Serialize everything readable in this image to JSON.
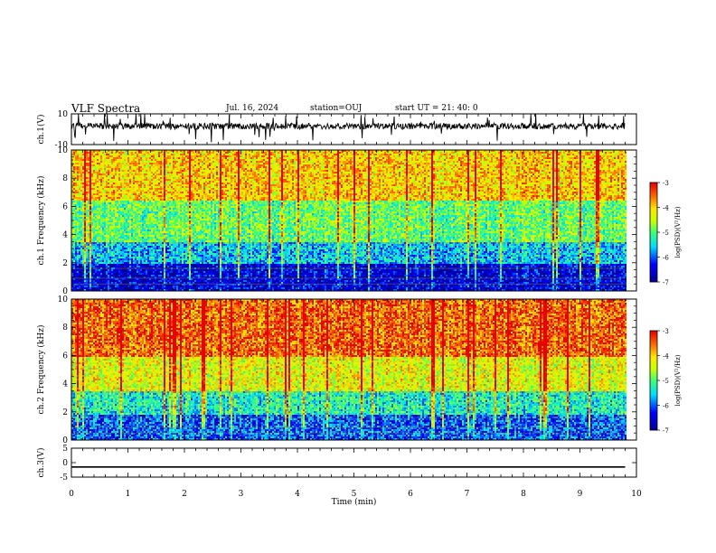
{
  "header": {
    "title": "VLF Spectra",
    "date": "Jul. 16, 2024",
    "station": "station=OUJ",
    "start": "start UT = 21: 40: 0"
  },
  "chart_data": [
    {
      "type": "line",
      "title": "",
      "ylabel": "ch.1(V)",
      "ylim": [
        -10,
        10
      ],
      "y_ticks": [
        "10",
        "-10"
      ],
      "xlabel": "",
      "xlim": [
        0,
        10
      ],
      "baseline": 0,
      "series": [
        {
          "values": "noisy waveform around 0 V with spikes",
          "color": "#000000"
        }
      ]
    },
    {
      "type": "heatmap",
      "title": "",
      "ylabel": "ch.1 Frequency (kHz)",
      "ylim": [
        0,
        10
      ],
      "y_ticks": [
        "0",
        "2",
        "4",
        "6",
        "8",
        "10"
      ],
      "xlim": [
        0,
        9.8
      ],
      "colorbar": {
        "label": "log(PSD)(V²/Hz)",
        "range": [
          -7,
          -3
        ],
        "ticks": [
          "-3",
          "-4",
          "-5",
          "-6",
          "-7"
        ]
      },
      "bands": [
        {
          "f_range": [
            0,
            2
          ],
          "log_psd": -6.5
        },
        {
          "f_range": [
            2,
            3.5
          ],
          "log_psd": -5.6
        },
        {
          "f_range": [
            3.5,
            6.5
          ],
          "log_psd": -4.9
        },
        {
          "f_range": [
            6.5,
            10
          ],
          "log_psd": -4.0
        }
      ]
    },
    {
      "type": "heatmap",
      "title": "",
      "ylabel": "ch.2 Frequency (kHz)",
      "ylim": [
        0,
        10
      ],
      "y_ticks": [
        "0",
        "2",
        "4",
        "6",
        "8",
        "10"
      ],
      "xlim": [
        0,
        9.8
      ],
      "colorbar": {
        "label": "log(PSD)(V²/Hz)",
        "range": [
          -7,
          -3
        ],
        "ticks": [
          "-3",
          "-4",
          "-5",
          "-6",
          "-7"
        ]
      },
      "bands": [
        {
          "f_range": [
            0,
            1.8
          ],
          "log_psd": -6.0
        },
        {
          "f_range": [
            1.8,
            3.5
          ],
          "log_psd": -5.3
        },
        {
          "f_range": [
            3.5,
            6.0
          ],
          "log_psd": -4.3
        },
        {
          "f_range": [
            6.0,
            10
          ],
          "log_psd": -3.5
        }
      ]
    },
    {
      "type": "line",
      "title": "",
      "ylabel": "ch.3(V)",
      "ylim": [
        -5,
        5
      ],
      "y_ticks": [
        "5",
        "0",
        "-5"
      ],
      "xlim": [
        0,
        10
      ],
      "series": [
        {
          "values": "flat line at about -1.5 V",
          "constant": -1.5,
          "color": "#000000"
        }
      ]
    }
  ],
  "xaxis": {
    "label": "Time (min)",
    "ticks": [
      "0",
      "1",
      "2",
      "3",
      "4",
      "5",
      "6",
      "7",
      "8",
      "9",
      "10"
    ]
  }
}
